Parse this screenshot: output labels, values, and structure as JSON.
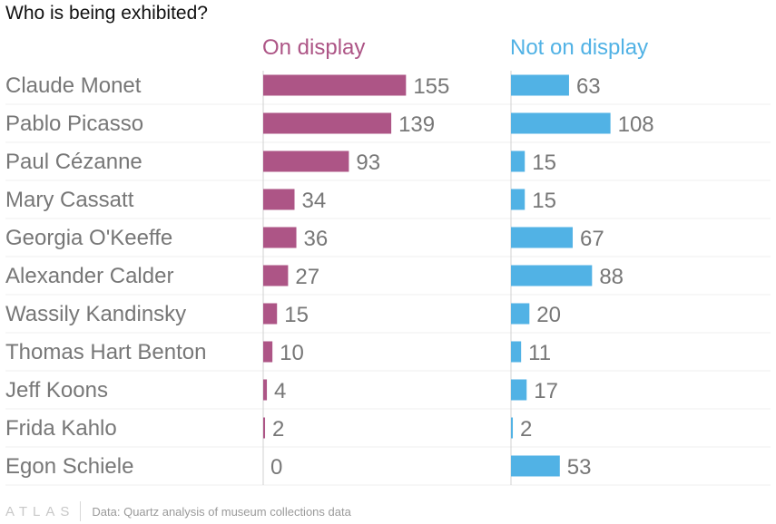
{
  "chart_data": {
    "type": "bar",
    "title": "Who is being exhibited?",
    "categories": [
      "Claude Monet",
      "Pablo Picasso",
      "Paul Cézanne",
      "Mary Cassatt",
      "Georgia O'Keeffe",
      "Alexander Calder",
      "Wassily Kandinsky",
      "Thomas Hart Benton",
      "Jeff Koons",
      "Frida Kahlo",
      "Egon Schiele"
    ],
    "series": [
      {
        "name": "On display",
        "values": [
          155,
          139,
          93,
          34,
          36,
          27,
          15,
          10,
          4,
          2,
          0
        ],
        "color": "#ad5586"
      },
      {
        "name": "Not on display",
        "values": [
          63,
          108,
          15,
          15,
          67,
          88,
          20,
          11,
          17,
          2,
          53
        ],
        "color": "#51b2e5"
      }
    ],
    "orientation": "horizontal",
    "layout": "small-multiples",
    "xlim": [
      0,
      200
    ],
    "grid": true,
    "label_color": "#777777"
  },
  "footer": {
    "brand": "ATLAS",
    "source": "Data: Quartz analysis of museum collections data"
  }
}
